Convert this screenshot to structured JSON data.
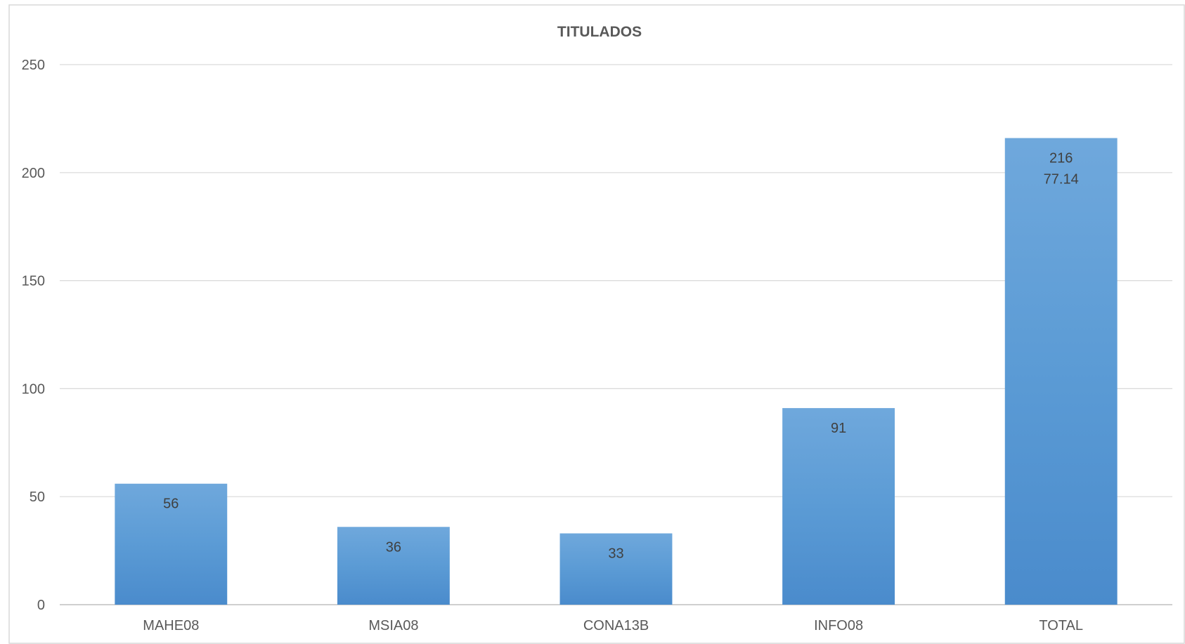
{
  "chart_data": {
    "type": "bar",
    "title": "TITULADOS",
    "xlabel": "",
    "ylabel": "",
    "categories": [
      "MAHE08",
      "MSIA08",
      "CONA13B",
      "INFO08",
      "TOTAL"
    ],
    "values": [
      56,
      36,
      33,
      91,
      216
    ],
    "data_labels": [
      [
        "56"
      ],
      [
        "36"
      ],
      [
        "33"
      ],
      [
        "91"
      ],
      [
        "216",
        "77.14"
      ]
    ],
    "ylim": [
      0,
      250
    ],
    "yticks": [
      0,
      50,
      100,
      150,
      200,
      250
    ],
    "grid": true,
    "legend": "none",
    "colors": {
      "bar_top": "#6fa8dc",
      "bar_mid": "#5b9bd5",
      "bar_bottom": "#4a8bcc",
      "grid": "#d9d9d9",
      "axis": "#bfbfbf",
      "text": "#595959"
    }
  }
}
